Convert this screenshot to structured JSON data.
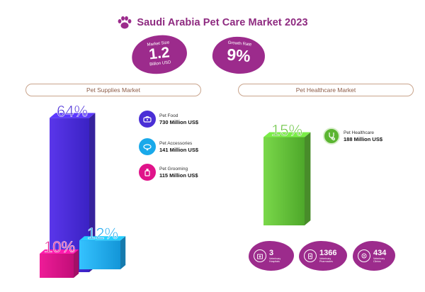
{
  "title": "Saudi Arabia Pet Care Market 2023",
  "market_size": {
    "label": "Market Size",
    "value": "1.2",
    "unit": "Billion USD"
  },
  "growth_rate": {
    "label": "Growth Rate",
    "value": "9%"
  },
  "sections": {
    "supplies": "Pet Supplies Market",
    "healthcare": "Pet Healthcare Market"
  },
  "legend": {
    "food": {
      "name": "Pet Food",
      "value": "730 Million US$",
      "icon": "pet-food-icon",
      "color": "#4a2fd6"
    },
    "accessories": {
      "name": "Pet Accessories",
      "value": "141 Million US$",
      "icon": "collar-icon",
      "color": "#19a9ea"
    },
    "grooming": {
      "name": "Pet Grooming",
      "value": "115 Million US$",
      "icon": "grooming-icon",
      "color": "#e0138a"
    },
    "healthcare": {
      "name": "Pet Healthcare",
      "value": "188 Million US$",
      "icon": "stethoscope-icon",
      "color": "#5bb531"
    }
  },
  "stats": [
    {
      "value": "3",
      "label1": "Veterinary",
      "label2": "Hospitals",
      "icon": "hospital-icon"
    },
    {
      "value": "1366",
      "label1": "Veterinary",
      "label2": "Pharmacies",
      "icon": "pharmacy-icon"
    },
    {
      "value": "434",
      "label1": "Veterinary",
      "label2": "Clinics",
      "icon": "clinic-icon"
    }
  ],
  "chart_data": [
    {
      "type": "bar",
      "categories": [
        "Pet Food",
        "Pet Grooming",
        "Pet Accessories"
      ],
      "values": [
        64,
        10,
        12
      ],
      "data_labels": [
        "64%",
        "10%",
        "12%"
      ],
      "colors": [
        "#4b2fd8",
        "#e1168f",
        "#1faaf0"
      ],
      "ylim": [
        0,
        70
      ]
    },
    {
      "type": "bar",
      "categories": [
        "Pet Healthcare"
      ],
      "values": [
        15
      ],
      "data_labels": [
        "15%"
      ],
      "colors": [
        "#64c23a"
      ],
      "ylim": [
        0,
        17
      ]
    }
  ]
}
